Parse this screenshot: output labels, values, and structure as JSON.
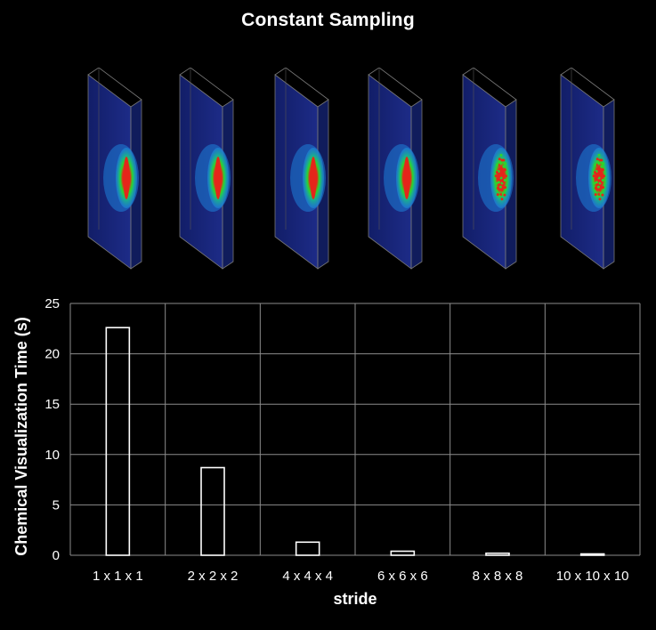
{
  "title": "Constant Sampling",
  "colors": {
    "background": "#000000",
    "slab": "#1b2f9a",
    "ring_outer": "#1e7fd8",
    "ring_green": "#2fd42a",
    "core_red": "#e5261a",
    "grid": "#8c8c8c",
    "bar_stroke": "#ffffff"
  },
  "renders": [
    {
      "stride": "1 x 1 x 1",
      "core": "smooth"
    },
    {
      "stride": "2 x 2 x 2",
      "core": "smooth"
    },
    {
      "stride": "4 x 4 x 4",
      "core": "smooth"
    },
    {
      "stride": "6 x 6 x 6",
      "core": "smooth"
    },
    {
      "stride": "8 x 8 x 8",
      "core": "speckled"
    },
    {
      "stride": "10 x 10 x 10",
      "core": "speckled"
    }
  ],
  "chart_data": {
    "type": "bar",
    "categories": [
      "1 x 1 x 1",
      "2 x 2 x 2",
      "4 x 4 x 4",
      "6 x 6 x 6",
      "8 x 8 x 8",
      "10 x 10 x 10"
    ],
    "values": [
      22.6,
      8.7,
      1.3,
      0.4,
      0.2,
      0.1
    ],
    "xlabel": "stride",
    "ylabel": "Chemical Visualization Time (s)",
    "ylim": [
      0,
      25
    ],
    "yticks": [
      0,
      5,
      10,
      15,
      20,
      25
    ],
    "grid": true,
    "bar_fill": "none",
    "bar_stroke": "#ffffff"
  }
}
